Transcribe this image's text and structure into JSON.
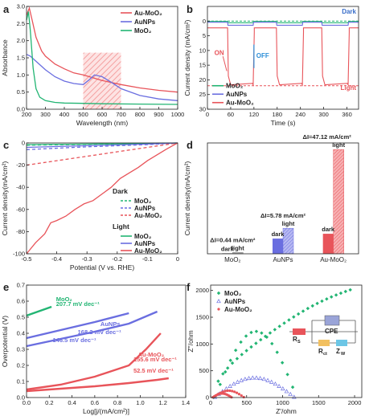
{
  "colors": {
    "red": "#e8545a",
    "blue": "#6a6ee0",
    "green": "#22b573",
    "redDark": "#d63b40",
    "hatch": "#f4a0a0"
  },
  "chart_data": [
    {
      "panel": "a",
      "type": "line",
      "xlabel": "Wavelength (nm)",
      "ylabel": "Absorbance",
      "xlim": [
        200,
        1000
      ],
      "ylim": [
        0.0,
        3.0
      ],
      "xticks": [
        200,
        300,
        400,
        500,
        600,
        700,
        800,
        900,
        1000
      ],
      "yticks": [
        0.0,
        0.5,
        1.0,
        1.5,
        2.0,
        2.5,
        3.0
      ],
      "highlight_range": [
        500,
        700
      ],
      "legend": "top-right",
      "series": [
        {
          "name": "Au-MoO2",
          "color": "red",
          "x": [
            200,
            215,
            230,
            250,
            280,
            300,
            350,
            400,
            450,
            500,
            600,
            700,
            800,
            900,
            1000
          ],
          "y": [
            2.75,
            2.95,
            2.6,
            2.1,
            1.7,
            1.55,
            1.32,
            1.18,
            1.06,
            1.0,
            0.84,
            0.72,
            0.62,
            0.55,
            0.5
          ]
        },
        {
          "name": "AuNPs",
          "color": "blue",
          "x": [
            200,
            220,
            260,
            300,
            350,
            400,
            450,
            500,
            530,
            560,
            600,
            650,
            700,
            800,
            900,
            1000
          ],
          "y": [
            1.6,
            1.55,
            1.35,
            1.15,
            0.95,
            0.82,
            0.75,
            0.72,
            0.85,
            1.0,
            0.95,
            0.78,
            0.6,
            0.4,
            0.3,
            0.25
          ]
        },
        {
          "name": "MoO2",
          "color": "green",
          "x": [
            200,
            210,
            220,
            235,
            250,
            270,
            300,
            350,
            400,
            500,
            600,
            800,
            1000
          ],
          "y": [
            2.6,
            2.85,
            2.3,
            1.2,
            0.6,
            0.35,
            0.25,
            0.2,
            0.18,
            0.17,
            0.16,
            0.15,
            0.14
          ]
        }
      ]
    },
    {
      "panel": "b",
      "type": "line",
      "xlabel": "Time (s)",
      "ylabel": "Current density (mA/cm²)",
      "xlim": [
        0,
        390
      ],
      "ylim": [
        30,
        -5
      ],
      "y_inverted": true,
      "xticks": [
        0,
        60,
        120,
        180,
        240,
        300,
        360
      ],
      "yticks": [
        0,
        5,
        10,
        15,
        20,
        25,
        30
      ],
      "annotations": {
        "dark": "Dark",
        "light": "Light",
        "on": "ON",
        "off": "OFF"
      },
      "reference_lines": {
        "dark": 0,
        "light": 22
      },
      "legend": "bottom-left",
      "series": [
        {
          "name": "MoO2",
          "color": "green",
          "level_dark": 0.1,
          "level_light": 0.55
        },
        {
          "name": "AuNPs",
          "color": "blue",
          "level_dark": 0.4,
          "level_light": 1.4
        },
        {
          "name": "Au-MoO2",
          "color": "red",
          "level_dark": 2.3,
          "level_light": 21.7,
          "light_intervals": [
            [
              52,
              118
            ],
            [
              178,
              245
            ],
            [
              295,
              363
            ]
          ]
        }
      ]
    },
    {
      "panel": "c",
      "type": "line",
      "xlabel": "Potential (V vs. RHE)",
      "ylabel": "Current density(mA/cm²)",
      "xlim": [
        -0.5,
        0.0
      ],
      "ylim": [
        -100,
        0
      ],
      "xticks": [
        -0.5,
        -0.4,
        -0.3,
        -0.2,
        -0.1,
        0.0
      ],
      "yticks": [
        0,
        -20,
        -40,
        -60,
        -80,
        -100
      ],
      "legend_groups": {
        "dark": "Dark",
        "light": "Light"
      },
      "series": [
        {
          "name": "MoO2",
          "group": "Dark",
          "color": "green",
          "dashed": true,
          "x": [
            -0.5,
            -0.3,
            -0.1,
            0.0
          ],
          "y": [
            -2,
            -1.2,
            -0.5,
            0
          ]
        },
        {
          "name": "AuNPs",
          "group": "Dark",
          "color": "blue",
          "dashed": true,
          "x": [
            -0.5,
            -0.3,
            -0.1,
            0.0
          ],
          "y": [
            -6,
            -3.5,
            -1.5,
            0
          ]
        },
        {
          "name": "Au-MoO2",
          "group": "Dark",
          "color": "red",
          "dashed": true,
          "x": [
            -0.5,
            -0.4,
            -0.3,
            -0.2,
            -0.1,
            0.0
          ],
          "y": [
            -20,
            -16,
            -12,
            -8,
            -4,
            0
          ]
        },
        {
          "name": "MoO2",
          "group": "Light",
          "color": "green",
          "dashed": false,
          "x": [
            -0.5,
            -0.3,
            -0.1,
            0.0
          ],
          "y": [
            -1.5,
            -1,
            -0.4,
            0
          ]
        },
        {
          "name": "AuNPs",
          "group": "Light",
          "color": "blue",
          "dashed": false,
          "x": [
            -0.5,
            -0.3,
            -0.1,
            0.0
          ],
          "y": [
            -4,
            -2.5,
            -1,
            0
          ]
        },
        {
          "name": "Au-MoO2",
          "group": "Light",
          "color": "red",
          "dashed": false,
          "x": [
            -0.5,
            -0.47,
            -0.44,
            -0.42,
            -0.4,
            -0.37,
            -0.34,
            -0.31,
            -0.28,
            -0.25,
            -0.22,
            -0.19,
            -0.16,
            -0.13,
            -0.1,
            -0.07,
            -0.04,
            -0.02,
            0.0
          ],
          "y": [
            -100,
            -90,
            -82,
            -72,
            -70,
            -66,
            -60,
            -55,
            -52,
            -46,
            -40,
            -32,
            -27,
            -22,
            -16,
            -11,
            -6,
            -3,
            0
          ]
        }
      ]
    },
    {
      "panel": "d",
      "type": "bar",
      "ylabel": "Current density(mA/cm²)",
      "categories": [
        "MoO₂",
        "AuNPs",
        "Au-MoO₂"
      ],
      "series": [
        {
          "name": "dark",
          "values": [
            0.3,
            8.5,
            11.2
          ]
        },
        {
          "name": "light",
          "values": [
            0.74,
            14.28,
            58.32
          ]
        }
      ],
      "bar_labels": {
        "dark": "dark",
        "light": "light"
      },
      "annotations": [
        "ΔI=0.44 mA/cm²",
        "ΔI=5.78 mA/cm²",
        "ΔI=47.12 mA/cm²"
      ],
      "ylim": [
        0,
        62
      ]
    },
    {
      "panel": "e",
      "type": "line",
      "xlabel": "Log[j/(mA/cm²)]",
      "ylabel": "Overpotential (V)",
      "xlim": [
        0.0,
        1.4
      ],
      "ylim": [
        0.0,
        0.7
      ],
      "xticks": [
        0.0,
        0.2,
        0.4,
        0.6,
        0.8,
        1.0,
        1.2,
        1.4
      ],
      "yticks": [
        0.0,
        0.1,
        0.2,
        0.3,
        0.4,
        0.5,
        0.6,
        0.7
      ],
      "series": [
        {
          "name": "MoO2",
          "color": "green",
          "x": [
            0.0,
            0.06,
            0.12,
            0.18,
            0.22
          ],
          "y": [
            0.51,
            0.525,
            0.54,
            0.555,
            0.565
          ]
        },
        {
          "name": "AuNPs",
          "color": "blue",
          "x": [
            0.0,
            0.3,
            0.6,
            0.9
          ],
          "y": [
            0.37,
            0.42,
            0.47,
            0.525
          ]
        },
        {
          "name": "AuNPs",
          "color": "blue",
          "x": [
            0.0,
            0.3,
            0.6,
            0.9,
            1.15
          ],
          "y": [
            0.32,
            0.365,
            0.41,
            0.46,
            0.535
          ]
        },
        {
          "name": "Au-MoO2",
          "color": "red",
          "x": [
            0.0,
            0.3,
            0.6,
            0.9,
            1.05,
            1.18
          ],
          "y": [
            0.05,
            0.08,
            0.13,
            0.2,
            0.3,
            0.4
          ]
        },
        {
          "name": "Au-MoO2",
          "color": "red",
          "x": [
            0.0,
            0.3,
            0.6,
            0.9,
            1.15,
            1.25
          ],
          "y": [
            0.04,
            0.055,
            0.07,
            0.09,
            0.11,
            0.12
          ]
        }
      ],
      "annotations": [
        {
          "text": "MoO₂",
          "color": "green"
        },
        {
          "text": "207.7 mV dec⁻¹",
          "color": "green"
        },
        {
          "text": "AuNPs",
          "color": "blue"
        },
        {
          "text": "168.2 mV dec⁻¹",
          "color": "blue"
        },
        {
          "text": "146.5 mV dec⁻¹",
          "color": "blue"
        },
        {
          "text": "Au-MoO₂",
          "color": "red"
        },
        {
          "text": "155.6 mV dec⁻¹",
          "color": "red"
        },
        {
          "text": "52.5 mV dec⁻¹",
          "color": "red"
        }
      ]
    },
    {
      "panel": "f",
      "type": "scatter",
      "xlabel": "Z'/ohm",
      "ylabel": "Z''/ohm",
      "xlim": [
        0,
        2100
      ],
      "ylim": [
        0,
        2100
      ],
      "xticks": [
        0,
        500,
        1000,
        1500,
        2000
      ],
      "yticks": [
        0,
        500,
        1000,
        1500,
        2000
      ],
      "legend": "top-left",
      "series": [
        {
          "name": "MoO2",
          "color": "green",
          "marker": "diamond"
        },
        {
          "name": "AuNPs",
          "color": "blue",
          "marker": "triangle"
        },
        {
          "name": "Au-MoO2",
          "color": "red",
          "marker": "circle"
        }
      ],
      "circuit_labels": {
        "rs": "R",
        "rs_sub": "S",
        "cpe": "CPE",
        "rct": "R",
        "rct_sub": "ct",
        "zw": "Z",
        "zw_sub": "W"
      }
    }
  ],
  "panel_letters": [
    "a",
    "b",
    "c",
    "d",
    "e",
    "f"
  ],
  "legend_labels": {
    "a": [
      "Au-MoO₂",
      "AuNPs",
      "MoO₂"
    ],
    "b": [
      "MoO₂",
      "AuNPs",
      "Au-MoO₂"
    ],
    "c_dark": [
      "MoO₂",
      "AuNPs",
      "Au-MoO₂"
    ],
    "c_light": [
      "MoO₂",
      "AuNPs",
      "Au-MoO₂"
    ],
    "f": [
      "MoO₂",
      "AuNPs",
      "Au-MoO₂"
    ]
  }
}
